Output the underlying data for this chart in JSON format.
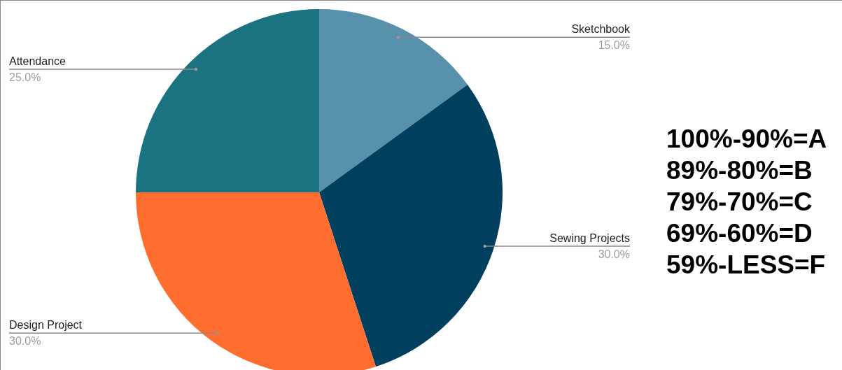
{
  "chart_data": {
    "type": "pie",
    "categories": [
      "Sketchbook",
      "Sewing Projects",
      "Design Project",
      "Attendance"
    ],
    "values": [
      15,
      30,
      30,
      25
    ],
    "colors": [
      "#5791ac",
      "#00405e",
      "#ff6d2f",
      "#1b7382"
    ],
    "value_labels": [
      "15.0%",
      "30.0%",
      "30.0%",
      "25.0%"
    ],
    "annotations": [
      "100%-90%=A",
      "89%-80%=B",
      "79%-70%=C",
      "69%-60%=D",
      "59%-LESS=F"
    ]
  }
}
